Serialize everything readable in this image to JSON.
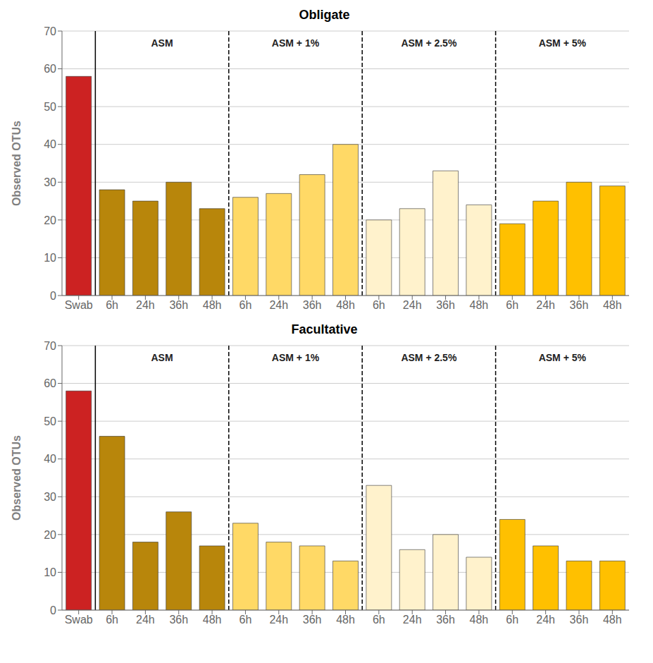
{
  "chart_data": [
    {
      "type": "bar",
      "title": "Obligate",
      "categories": [
        "Swab",
        "6h",
        "24h",
        "36h",
        "48h",
        "6h",
        "24h",
        "36h",
        "48h",
        "6h",
        "24h",
        "36h",
        "48h",
        "6h",
        "24h",
        "36h",
        "48h"
      ],
      "values": [
        58,
        28,
        25,
        30,
        23,
        26,
        27,
        32,
        40,
        20,
        23,
        33,
        24,
        19,
        25,
        30,
        29
      ],
      "colors": [
        "#CC2222",
        "#B8860B",
        "#B8860B",
        "#B8860B",
        "#B8860B",
        "#FFD966",
        "#FFD966",
        "#FFD966",
        "#FFD966",
        "#FFF2CC",
        "#FFF2CC",
        "#FFF2CC",
        "#FFF2CC",
        "#FFC000",
        "#FFC000",
        "#FFC000",
        "#FFC000"
      ],
      "ylabel": "Observed OTUs",
      "ylim": [
        0,
        70
      ],
      "yticks": [
        0,
        10,
        20,
        30,
        40,
        50,
        60,
        70
      ],
      "grid": true,
      "annotations": [
        "ASM",
        "ASM + 1%",
        "ASM + 2.5%",
        "ASM + 5%"
      ]
    },
    {
      "type": "bar",
      "title": "Facultative",
      "categories": [
        "Swab",
        "6h",
        "24h",
        "36h",
        "48h",
        "6h",
        "24h",
        "36h",
        "48h",
        "6h",
        "24h",
        "36h",
        "48h",
        "6h",
        "24h",
        "36h",
        "48h"
      ],
      "values": [
        58,
        46,
        18,
        26,
        17,
        23,
        18,
        17,
        13,
        33,
        16,
        20,
        14,
        24,
        17,
        13,
        13
      ],
      "colors": [
        "#CC2222",
        "#B8860B",
        "#B8860B",
        "#B8860B",
        "#B8860B",
        "#FFD966",
        "#FFD966",
        "#FFD966",
        "#FFD966",
        "#FFF2CC",
        "#FFF2CC",
        "#FFF2CC",
        "#FFF2CC",
        "#FFC000",
        "#FFC000",
        "#FFC000",
        "#FFC000"
      ],
      "ylabel": "Observed OTUs",
      "ylim": [
        0,
        70
      ],
      "yticks": [
        0,
        10,
        20,
        30,
        40,
        50,
        60,
        70
      ],
      "grid": true,
      "annotations": [
        "ASM",
        "ASM + 1%",
        "ASM + 2.5%",
        "ASM + 5%"
      ]
    }
  ]
}
